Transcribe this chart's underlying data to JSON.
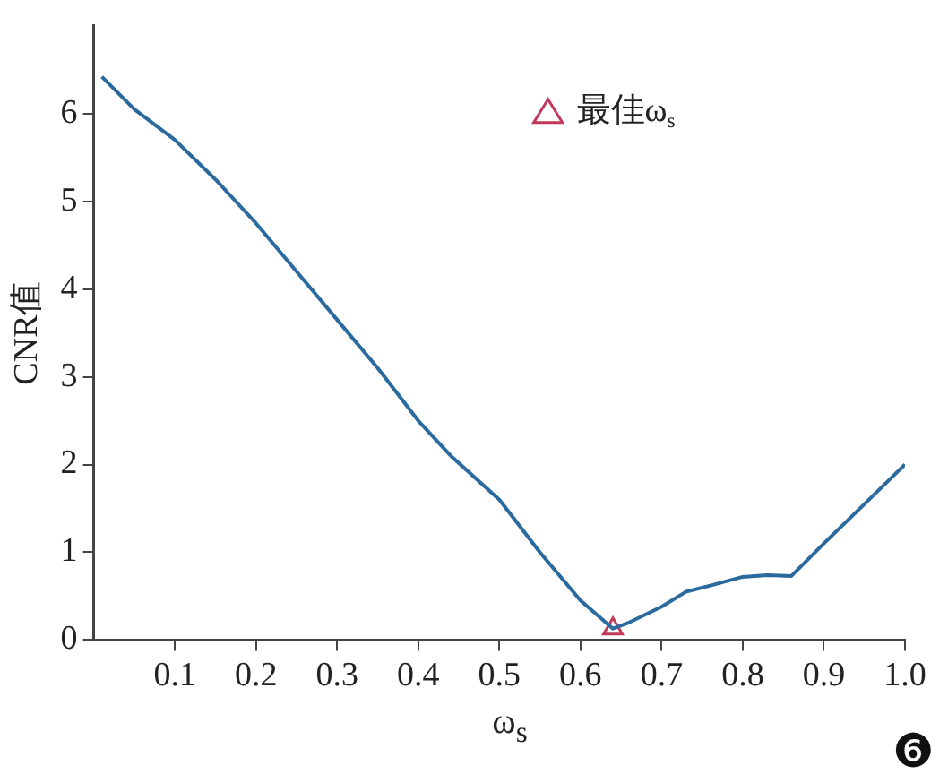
{
  "chart_data": {
    "type": "line",
    "xlabel": "ω$_{s}$",
    "ylabel": "CNR值",
    "xlim": [
      0,
      1
    ],
    "ylim": [
      0,
      7
    ],
    "xticks": [
      0.1,
      0.2,
      0.3,
      0.4,
      0.5,
      0.6,
      0.7,
      0.8,
      0.9,
      {
        "value": 1,
        "label": "1.0"
      }
    ],
    "yticks": [
      0,
      1,
      2,
      3,
      4,
      5,
      6
    ],
    "grid": false,
    "legend": "top right",
    "annotations": [
      "❻"
    ],
    "series": [
      {
        "type": "line",
        "color": "#2a6a9e",
        "marker": "none",
        "x": [
          0.01,
          0.05,
          0.1,
          0.15,
          0.2,
          0.25,
          0.3,
          0.35,
          0.4,
          0.44,
          0.5,
          0.55,
          0.6,
          0.64,
          0.66,
          0.7,
          0.73,
          0.76,
          0.8,
          0.83,
          0.86,
          0.9,
          0.95,
          1.0
        ],
        "values": [
          6.42,
          6.05,
          5.7,
          5.25,
          4.75,
          4.2,
          3.65,
          3.1,
          2.5,
          2.1,
          1.6,
          1.0,
          0.45,
          0.13,
          0.2,
          0.38,
          0.55,
          0.62,
          0.72,
          0.74,
          0.73,
          1.1,
          1.55,
          2.0
        ]
      },
      {
        "type": "scatter",
        "name": "最佳ω$_{s}$",
        "color": "#c0395a",
        "marker": "triangle",
        "x": [
          0.64
        ],
        "values": [
          0.13
        ]
      }
    ]
  }
}
